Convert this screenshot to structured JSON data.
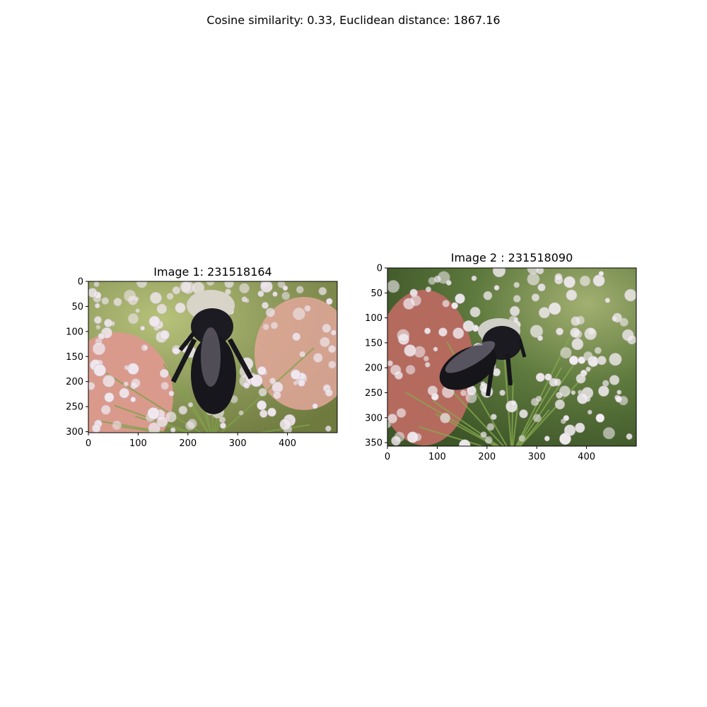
{
  "figure": {
    "suptitle": "Cosine similarity: 0.33, Euclidean distance: 1867.16"
  },
  "chart_data": [
    {
      "type": "image",
      "title": "Image 1: 231518164",
      "xlim": [
        0,
        500
      ],
      "ylim": [
        302,
        0
      ],
      "xticks": [
        0,
        100,
        200,
        300,
        400
      ],
      "yticks": [
        0,
        50,
        100,
        150,
        200,
        250,
        300
      ],
      "grid": false,
      "image_content": "bumblebee on white umbellifer flower cluster, finger in background",
      "palette": {
        "background": "#8f9b5c",
        "bee": "#17161c",
        "fur": "#d8d4c8",
        "flower": "#f1e9ef",
        "finger": "#d99a8c",
        "stem": "#7fa24a"
      }
    },
    {
      "type": "image",
      "title": "Image 2 : 231518090",
      "xlim": [
        0,
        500
      ],
      "ylim": [
        357,
        0
      ],
      "xticks": [
        0,
        100,
        200,
        300,
        400
      ],
      "yticks": [
        0,
        50,
        100,
        150,
        200,
        250,
        300,
        350
      ],
      "grid": false,
      "image_content": "bee on white umbellifer flower cluster, reddish finger at left",
      "palette": {
        "background": "#5f7a3e",
        "bee": "#15151a",
        "fur": "#cfcfc8",
        "flower": "#f3eef2",
        "finger": "#b56a5e",
        "stem": "#86a84e"
      }
    }
  ]
}
